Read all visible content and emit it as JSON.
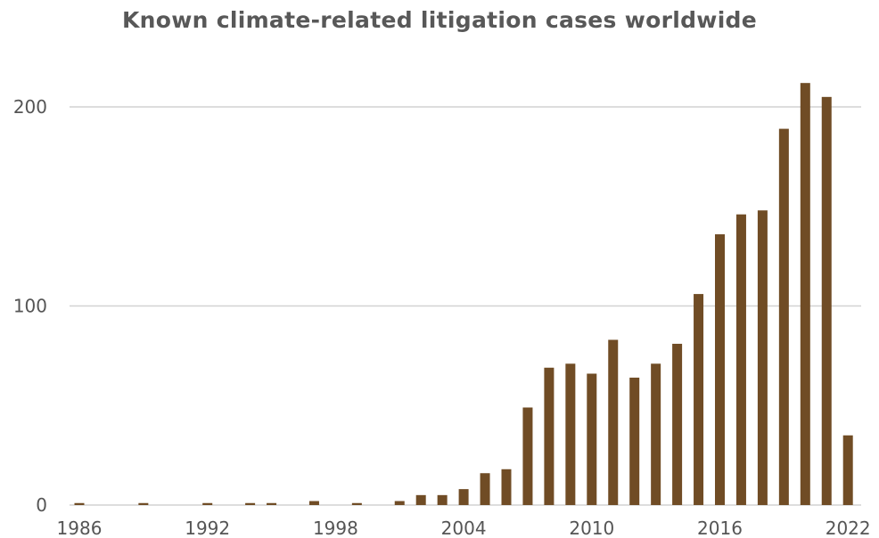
{
  "colors": {
    "bar": "#704c25",
    "grid": "#d2d2d2",
    "text": "#555555",
    "title": "#585858"
  },
  "chart_data": {
    "type": "bar",
    "title": "Known climate-related litigation cases worldwide",
    "xlabel": "",
    "ylabel": "",
    "ylim": [
      0,
      215
    ],
    "yticks": [
      0,
      100,
      200
    ],
    "xticks": [
      1986,
      1992,
      1998,
      2004,
      2010,
      2016,
      2022
    ],
    "grid": true,
    "legend": "none",
    "categories": [
      1986,
      1987,
      1988,
      1989,
      1990,
      1991,
      1992,
      1993,
      1994,
      1995,
      1996,
      1997,
      1998,
      1999,
      2000,
      2001,
      2002,
      2003,
      2004,
      2005,
      2006,
      2007,
      2008,
      2009,
      2010,
      2011,
      2012,
      2013,
      2014,
      2015,
      2016,
      2017,
      2018,
      2019,
      2020,
      2021,
      2022
    ],
    "values": [
      1,
      0,
      0,
      1,
      0,
      0,
      1,
      0,
      1,
      1,
      0,
      2,
      0,
      1,
      0,
      2,
      5,
      5,
      8,
      16,
      18,
      49,
      69,
      71,
      66,
      83,
      64,
      71,
      81,
      106,
      136,
      146,
      148,
      189,
      212,
      205,
      35
    ]
  }
}
